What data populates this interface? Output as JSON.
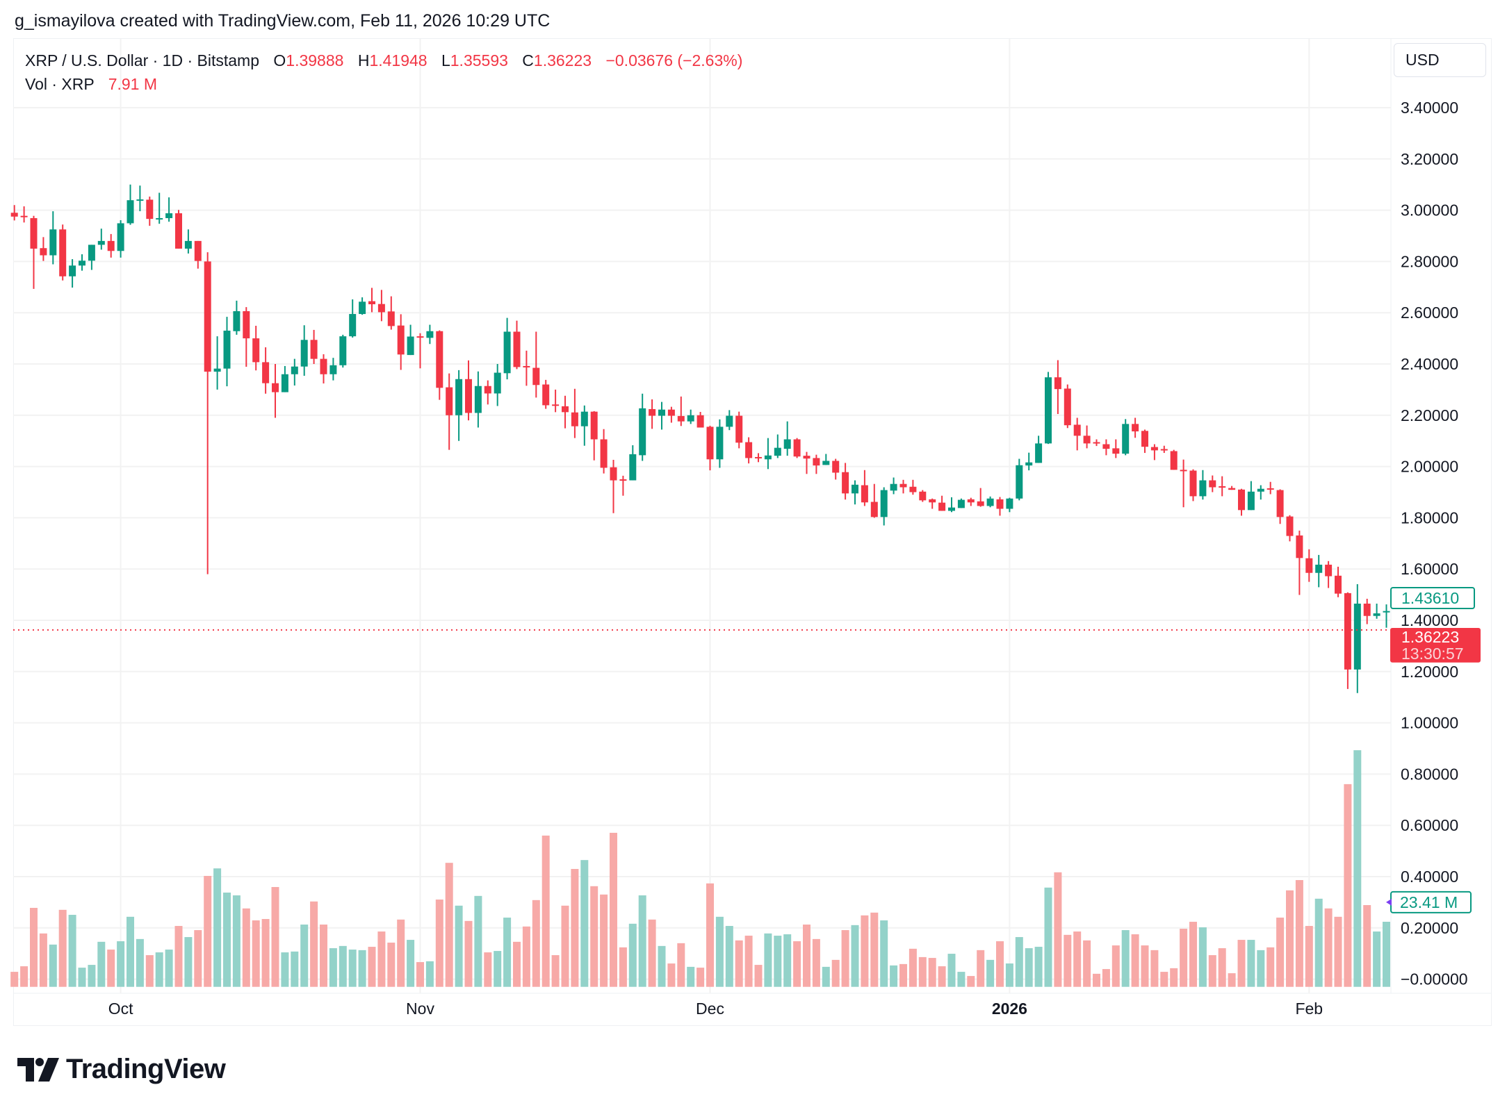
{
  "header": {
    "attribution": "g_ismayilova created with TradingView.com, Feb 11, 2026 10:29 UTC",
    "symbol": "XRP / U.S. Dollar · 1D · Bitstamp",
    "o_label": "O",
    "o": "1.39888",
    "h_label": "H",
    "h": "1.41948",
    "l_label": "L",
    "l": "1.35593",
    "c_label": "C",
    "c": "1.36223",
    "change": "−0.03676 (−2.63%)",
    "vol_label": "Vol · XRP",
    "vol": "7.91 M"
  },
  "axis": {
    "currency": "USD",
    "last_candle_close_label": "1.43610",
    "last_price_label": "1.36223",
    "countdown_label": "13:30:57",
    "volume_label": "23.41 M"
  },
  "colors": {
    "up": "#089981",
    "down": "#F23645",
    "volume_up": "#93d2c9",
    "volume_down": "#f7a9a7",
    "grid": "#f2f2f2"
  },
  "logo": {
    "text": "TradingView",
    "icon": "tradingview-logo-icon"
  },
  "chart_data": {
    "type": "candlestick",
    "title": "",
    "grid": true,
    "y_scale": "linear",
    "ylim": [
      0,
      3.4
    ],
    "y_ticks": [
      "3.40000",
      "3.20000",
      "3.00000",
      "2.80000",
      "2.60000",
      "2.40000",
      "2.20000",
      "2.00000",
      "1.80000",
      "1.60000",
      "1.40000",
      "1.20000",
      "1.00000",
      "0.80000",
      "0.60000",
      "0.40000",
      "0.20000",
      "−0.00000"
    ],
    "x_ticks": [
      {
        "label": "Oct",
        "date": "2025-10-01",
        "bold": false
      },
      {
        "label": "Nov",
        "date": "2025-11-01",
        "bold": false
      },
      {
        "label": "Dec",
        "date": "2025-12-01",
        "bold": false
      },
      {
        "label": "2026",
        "date": "2026-01-01",
        "bold": true
      },
      {
        "label": "Feb",
        "date": "2026-02-01",
        "bold": false
      }
    ],
    "last_price": 1.36223,
    "columns": [
      "date",
      "open",
      "high",
      "low",
      "close",
      "volume_M"
    ],
    "candles": [
      [
        "2025-09-20",
        2.99,
        3.02,
        2.96,
        2.975,
        5.4
      ],
      [
        "2025-09-21",
        2.978,
        3.015,
        2.952,
        2.976,
        7.4
      ],
      [
        "2025-09-22",
        2.969,
        2.978,
        2.693,
        2.85,
        28.4
      ],
      [
        "2025-09-23",
        2.852,
        2.895,
        2.802,
        2.824,
        19.2
      ],
      [
        "2025-09-24",
        2.824,
        2.996,
        2.789,
        2.925,
        15.2
      ],
      [
        "2025-09-25",
        2.925,
        2.944,
        2.726,
        2.742,
        27.7
      ],
      [
        "2025-09-26",
        2.742,
        2.809,
        2.698,
        2.784,
        25.9
      ],
      [
        "2025-09-27",
        2.784,
        2.828,
        2.764,
        2.803,
        6.9
      ],
      [
        "2025-09-28",
        2.803,
        2.865,
        2.767,
        2.865,
        7.9
      ],
      [
        "2025-09-29",
        2.865,
        2.928,
        2.846,
        2.88,
        16.2
      ],
      [
        "2025-09-30",
        2.88,
        2.907,
        2.815,
        2.841,
        13.4
      ],
      [
        "2025-10-01",
        2.841,
        2.961,
        2.815,
        2.949,
        16.4
      ],
      [
        "2025-10-02",
        2.949,
        3.1,
        2.943,
        3.039,
        25.2
      ],
      [
        "2025-10-03",
        3.039,
        3.096,
        2.996,
        3.042,
        17.2
      ],
      [
        "2025-10-04",
        3.041,
        3.053,
        2.939,
        2.966,
        11.4
      ],
      [
        "2025-10-05",
        2.966,
        3.068,
        2.947,
        2.969,
        12.4
      ],
      [
        "2025-10-06",
        2.969,
        3.05,
        2.955,
        2.988,
        13.4
      ],
      [
        "2025-10-07",
        2.988,
        3.001,
        2.85,
        2.85,
        21.9
      ],
      [
        "2025-10-08",
        2.85,
        2.925,
        2.831,
        2.88,
        17.9
      ],
      [
        "2025-10-09",
        2.88,
        2.88,
        2.772,
        2.802,
        20.4
      ],
      [
        "2025-10-10",
        2.8,
        2.836,
        1.58,
        2.37,
        39.9
      ],
      [
        "2025-10-11",
        2.37,
        2.508,
        2.3,
        2.382,
        42.6
      ],
      [
        "2025-10-12",
        2.382,
        2.584,
        2.313,
        2.53,
        33.9
      ],
      [
        "2025-10-13",
        2.528,
        2.647,
        2.514,
        2.606,
        32.9
      ],
      [
        "2025-10-14",
        2.606,
        2.622,
        2.389,
        2.5,
        28.2
      ],
      [
        "2025-10-15",
        2.5,
        2.549,
        2.375,
        2.407,
        23.9
      ],
      [
        "2025-10-16",
        2.407,
        2.465,
        2.284,
        2.325,
        24.4
      ],
      [
        "2025-10-17",
        2.325,
        2.4,
        2.19,
        2.29,
        35.9
      ],
      [
        "2025-10-18",
        2.29,
        2.392,
        2.29,
        2.36,
        12.4
      ],
      [
        "2025-10-19",
        2.36,
        2.42,
        2.316,
        2.39,
        12.7
      ],
      [
        "2025-10-20",
        2.39,
        2.551,
        2.354,
        2.494,
        22.4
      ],
      [
        "2025-10-21",
        2.494,
        2.533,
        2.4,
        2.42,
        30.7
      ],
      [
        "2025-10-22",
        2.42,
        2.438,
        2.324,
        2.36,
        22.4
      ],
      [
        "2025-10-23",
        2.36,
        2.424,
        2.336,
        2.395,
        13.9
      ],
      [
        "2025-10-24",
        2.395,
        2.514,
        2.386,
        2.508,
        14.7
      ],
      [
        "2025-10-25",
        2.508,
        2.652,
        2.503,
        2.595,
        13.4
      ],
      [
        "2025-10-26",
        2.595,
        2.66,
        2.592,
        2.643,
        13.2
      ],
      [
        "2025-10-27",
        2.645,
        2.697,
        2.602,
        2.633,
        14.4
      ],
      [
        "2025-10-28",
        2.634,
        2.689,
        2.567,
        2.602,
        19.9
      ],
      [
        "2025-10-29",
        2.605,
        2.664,
        2.534,
        2.548,
        15.9
      ],
      [
        "2025-10-30",
        2.55,
        2.594,
        2.377,
        2.437,
        24.2
      ],
      [
        "2025-10-31",
        2.435,
        2.553,
        2.435,
        2.507,
        16.9
      ],
      [
        "2025-11-01",
        2.508,
        2.52,
        2.383,
        2.505,
        8.9
      ],
      [
        "2025-11-02",
        2.502,
        2.553,
        2.478,
        2.528,
        9.2
      ],
      [
        "2025-11-03",
        2.528,
        2.531,
        2.26,
        2.307,
        31.4
      ],
      [
        "2025-11-04",
        2.309,
        2.363,
        2.065,
        2.2,
        44.6
      ],
      [
        "2025-11-05",
        2.2,
        2.376,
        2.1,
        2.341,
        29.2
      ],
      [
        "2025-11-06",
        2.341,
        2.414,
        2.18,
        2.209,
        23.7
      ],
      [
        "2025-11-07",
        2.209,
        2.371,
        2.152,
        2.314,
        32.7
      ],
      [
        "2025-11-08",
        2.314,
        2.336,
        2.242,
        2.285,
        12.4
      ],
      [
        "2025-11-09",
        2.285,
        2.4,
        2.236,
        2.366,
        12.9
      ],
      [
        "2025-11-10",
        2.364,
        2.58,
        2.34,
        2.526,
        24.9
      ],
      [
        "2025-11-11",
        2.526,
        2.569,
        2.38,
        2.388,
        16.2
      ],
      [
        "2025-11-12",
        2.392,
        2.452,
        2.315,
        2.388,
        21.7
      ],
      [
        "2025-11-13",
        2.385,
        2.526,
        2.269,
        2.318,
        31.2
      ],
      [
        "2025-11-14",
        2.32,
        2.338,
        2.225,
        2.239,
        54.4
      ],
      [
        "2025-11-15",
        2.242,
        2.3,
        2.212,
        2.237,
        11.4
      ],
      [
        "2025-11-16",
        2.235,
        2.276,
        2.149,
        2.212,
        29.2
      ],
      [
        "2025-11-17",
        2.211,
        2.303,
        2.111,
        2.157,
        42.4
      ],
      [
        "2025-11-18",
        2.157,
        2.238,
        2.081,
        2.214,
        45.6
      ],
      [
        "2025-11-19",
        2.214,
        2.216,
        2.024,
        2.106,
        36.2
      ],
      [
        "2025-11-20",
        2.106,
        2.146,
        1.973,
        1.995,
        33.2
      ],
      [
        "2025-11-21",
        1.997,
        2.026,
        1.818,
        1.946,
        55.4
      ],
      [
        "2025-11-22",
        1.95,
        1.964,
        1.886,
        1.948,
        14.2
      ],
      [
        "2025-11-23",
        1.946,
        2.083,
        1.946,
        2.048,
        22.7
      ],
      [
        "2025-11-24",
        2.044,
        2.284,
        2.022,
        2.227,
        32.9
      ],
      [
        "2025-11-25",
        2.224,
        2.262,
        2.147,
        2.198,
        24.2
      ],
      [
        "2025-11-26",
        2.198,
        2.252,
        2.144,
        2.222,
        14.7
      ],
      [
        "2025-11-27",
        2.222,
        2.233,
        2.171,
        2.198,
        8.4
      ],
      [
        "2025-11-28",
        2.197,
        2.273,
        2.158,
        2.176,
        15.7
      ],
      [
        "2025-11-29",
        2.176,
        2.222,
        2.166,
        2.2,
        7.2
      ],
      [
        "2025-11-30",
        2.2,
        2.213,
        2.152,
        2.152,
        6.9
      ],
      [
        "2025-12-01",
        2.155,
        2.159,
        1.985,
        2.028,
        37.2
      ],
      [
        "2025-12-02",
        2.028,
        2.184,
        1.995,
        2.155,
        25.2
      ],
      [
        "2025-12-03",
        2.155,
        2.22,
        2.142,
        2.198,
        21.9
      ],
      [
        "2025-12-04",
        2.198,
        2.214,
        2.071,
        2.093,
        16.7
      ],
      [
        "2025-12-05",
        2.095,
        2.114,
        2.012,
        2.033,
        18.4
      ],
      [
        "2025-12-06",
        2.037,
        2.052,
        2.017,
        2.036,
        7.9
      ],
      [
        "2025-12-07",
        2.028,
        2.111,
        1.99,
        2.043,
        19.2
      ],
      [
        "2025-12-08",
        2.042,
        2.125,
        2.033,
        2.073,
        18.4
      ],
      [
        "2025-12-09",
        2.069,
        2.176,
        2.042,
        2.106,
        18.9
      ],
      [
        "2025-12-10",
        2.106,
        2.111,
        2.033,
        2.039,
        16.4
      ],
      [
        "2025-12-11",
        2.042,
        2.057,
        1.971,
        2.031,
        22.4
      ],
      [
        "2025-12-12",
        2.033,
        2.046,
        1.971,
        2.004,
        17.2
      ],
      [
        "2025-12-13",
        2.006,
        2.049,
        2.006,
        2.022,
        7.2
      ],
      [
        "2025-12-14",
        2.022,
        2.03,
        1.949,
        1.976,
        9.7
      ],
      [
        "2025-12-15",
        1.978,
        2.014,
        1.871,
        1.895,
        20.4
      ],
      [
        "2025-12-16",
        1.895,
        1.946,
        1.852,
        1.929,
        22.2
      ],
      [
        "2025-12-17",
        1.927,
        1.986,
        1.846,
        1.86,
        25.7
      ],
      [
        "2025-12-18",
        1.862,
        1.932,
        1.8,
        1.803,
        26.7
      ],
      [
        "2025-12-19",
        1.803,
        1.919,
        1.77,
        1.908,
        23.9
      ],
      [
        "2025-12-20",
        1.906,
        1.957,
        1.892,
        1.932,
        7.7
      ],
      [
        "2025-12-21",
        1.932,
        1.948,
        1.895,
        1.919,
        8.2
      ],
      [
        "2025-12-22",
        1.921,
        1.948,
        1.89,
        1.9,
        13.7
      ],
      [
        "2025-12-23",
        1.902,
        1.908,
        1.862,
        1.868,
        10.7
      ],
      [
        "2025-12-24",
        1.872,
        1.875,
        1.835,
        1.86,
        10.4
      ],
      [
        "2025-12-25",
        1.859,
        1.886,
        1.827,
        1.827,
        7.4
      ],
      [
        "2025-12-26",
        1.827,
        1.88,
        1.822,
        1.84,
        11.9
      ],
      [
        "2025-12-27",
        1.838,
        1.875,
        1.838,
        1.87,
        5.4
      ],
      [
        "2025-12-28",
        1.872,
        1.878,
        1.846,
        1.86,
        3.9
      ],
      [
        "2025-12-29",
        1.864,
        1.916,
        1.843,
        1.846,
        13.2
      ],
      [
        "2025-12-30",
        1.846,
        1.883,
        1.841,
        1.875,
        9.7
      ],
      [
        "2025-12-31",
        1.872,
        1.881,
        1.808,
        1.835,
        16.4
      ],
      [
        "2026-01-01",
        1.835,
        1.878,
        1.822,
        1.875,
        8.4
      ],
      [
        "2026-01-02",
        1.875,
        2.03,
        1.868,
        2.005,
        17.9
      ],
      [
        "2026-01-03",
        2.004,
        2.054,
        1.985,
        2.016,
        13.9
      ],
      [
        "2026-01-04",
        2.014,
        2.12,
        2.014,
        2.09,
        14.4
      ],
      [
        "2026-01-05",
        2.09,
        2.369,
        2.088,
        2.348,
        35.7
      ],
      [
        "2026-01-06",
        2.348,
        2.415,
        2.205,
        2.302,
        41.2
      ],
      [
        "2026-01-07",
        2.304,
        2.32,
        2.15,
        2.161,
        18.7
      ],
      [
        "2026-01-08",
        2.163,
        2.19,
        2.063,
        2.12,
        19.9
      ],
      [
        "2026-01-09",
        2.12,
        2.16,
        2.071,
        2.09,
        16.7
      ],
      [
        "2026-01-10",
        2.095,
        2.106,
        2.08,
        2.093,
        4.7
      ],
      [
        "2026-01-11",
        2.087,
        2.106,
        2.044,
        2.069,
        6.4
      ],
      [
        "2026-01-12",
        2.071,
        2.106,
        2.033,
        2.05,
        14.9
      ],
      [
        "2026-01-13",
        2.05,
        2.185,
        2.044,
        2.166,
        20.4
      ],
      [
        "2026-01-14",
        2.166,
        2.19,
        2.112,
        2.137,
        18.9
      ],
      [
        "2026-01-15",
        2.139,
        2.144,
        2.053,
        2.077,
        14.9
      ],
      [
        "2026-01-16",
        2.076,
        2.087,
        2.025,
        2.063,
        13.2
      ],
      [
        "2026-01-17",
        2.068,
        2.081,
        2.053,
        2.066,
        5.4
      ],
      [
        "2026-01-18",
        2.06,
        2.065,
        1.987,
        1.987,
        6.7
      ],
      [
        "2026-01-19",
        1.987,
        2.027,
        1.841,
        1.985,
        20.9
      ],
      [
        "2026-01-20",
        1.984,
        1.989,
        1.865,
        1.884,
        23.4
      ],
      [
        "2026-01-21",
        1.884,
        1.986,
        1.871,
        1.946,
        21.4
      ],
      [
        "2026-01-22",
        1.946,
        1.965,
        1.9,
        1.919,
        11.4
      ],
      [
        "2026-01-23",
        1.923,
        1.962,
        1.884,
        1.92,
        13.9
      ],
      [
        "2026-01-24",
        1.916,
        1.924,
        1.909,
        1.909,
        4.9
      ],
      [
        "2026-01-25",
        1.91,
        1.913,
        1.808,
        1.83,
        16.9
      ],
      [
        "2026-01-26",
        1.83,
        1.943,
        1.83,
        1.902,
        16.9
      ],
      [
        "2026-01-27",
        1.902,
        1.927,
        1.871,
        1.913,
        13.2
      ],
      [
        "2026-01-28",
        1.915,
        1.94,
        1.892,
        1.912,
        14.2
      ],
      [
        "2026-01-29",
        1.908,
        1.911,
        1.776,
        1.803,
        24.9
      ],
      [
        "2026-01-30",
        1.805,
        1.81,
        1.708,
        1.729,
        34.7
      ],
      [
        "2026-01-31",
        1.731,
        1.75,
        1.499,
        1.643,
        38.4
      ],
      [
        "2026-02-01",
        1.642,
        1.677,
        1.55,
        1.585,
        21.9
      ],
      [
        "2026-02-02",
        1.585,
        1.655,
        1.529,
        1.617,
        31.7
      ],
      [
        "2026-02-03",
        1.617,
        1.631,
        1.526,
        1.572,
        28.2
      ],
      [
        "2026-02-04",
        1.574,
        1.609,
        1.49,
        1.504,
        25.2
      ],
      [
        "2026-02-05",
        1.506,
        1.509,
        1.132,
        1.208,
        72.9
      ],
      [
        "2026-02-06",
        1.208,
        1.541,
        1.116,
        1.465,
        85.1
      ],
      [
        "2026-02-07",
        1.465,
        1.484,
        1.385,
        1.417,
        29.4
      ],
      [
        "2026-02-08",
        1.417,
        1.465,
        1.406,
        1.427,
        19.9
      ],
      [
        "2026-02-09",
        1.432,
        1.462,
        1.371,
        1.4361,
        23.41
      ]
    ]
  }
}
